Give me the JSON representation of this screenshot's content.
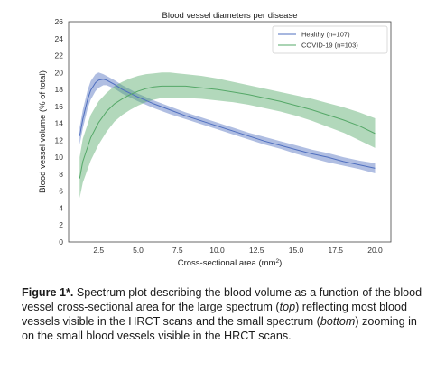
{
  "chart_data": {
    "type": "line",
    "title": "Blood vessel diameters per disease",
    "xlabel": "Cross-sectional area (mm²)",
    "ylabel": "Blood vessel volume (% of total)",
    "xlim": [
      0.6,
      21.0
    ],
    "ylim": [
      0,
      26
    ],
    "xticks": [
      "2.5",
      "5.0",
      "7.5",
      "10.0",
      "12.5",
      "15.0",
      "17.5",
      "20.0"
    ],
    "yticks": [
      "0",
      "2",
      "4",
      "6",
      "8",
      "10",
      "12",
      "14",
      "16",
      "18",
      "20",
      "22",
      "24",
      "26"
    ],
    "legend_position": "top-right",
    "grid": false,
    "series": [
      {
        "name": "Healthy (n=107)",
        "color": "#4f6fbf",
        "x": [
          1.3,
          1.5,
          1.8,
          2.0,
          2.3,
          2.5,
          2.8,
          3.0,
          3.5,
          4.0,
          5.0,
          6.0,
          7.0,
          8.0,
          9.0,
          10.0,
          11.0,
          12.0,
          13.0,
          14.0,
          15.0,
          16.0,
          17.0,
          18.0,
          19.0,
          20.0
        ],
        "mean": [
          12.5,
          14.5,
          16.8,
          17.9,
          18.8,
          19.1,
          19.2,
          19.1,
          18.6,
          18.0,
          17.1,
          16.3,
          15.6,
          14.9,
          14.3,
          13.7,
          13.1,
          12.5,
          11.9,
          11.4,
          10.9,
          10.4,
          10.0,
          9.5,
          9.1,
          8.7
        ],
        "upper": [
          13.5,
          15.6,
          17.9,
          19.0,
          19.8,
          20.0,
          19.8,
          19.6,
          19.1,
          18.5,
          17.5,
          16.7,
          16.0,
          15.3,
          14.7,
          14.1,
          13.5,
          12.9,
          12.4,
          11.9,
          11.4,
          10.9,
          10.5,
          10.0,
          9.6,
          9.3
        ],
        "lower": [
          11.5,
          13.4,
          15.7,
          16.8,
          17.8,
          18.2,
          18.5,
          18.5,
          18.1,
          17.5,
          16.6,
          15.8,
          15.1,
          14.5,
          13.9,
          13.3,
          12.7,
          12.1,
          11.5,
          11.0,
          10.4,
          9.9,
          9.4,
          9.0,
          8.6,
          8.1
        ]
      },
      {
        "name": "COVID-19 (n=103)",
        "color": "#55a868",
        "x": [
          1.3,
          1.5,
          2.0,
          2.5,
          3.0,
          3.5,
          4.0,
          4.5,
          5.0,
          5.5,
          6.0,
          6.5,
          7.0,
          7.5,
          8.0,
          9.0,
          10.0,
          11.0,
          12.0,
          13.0,
          14.0,
          15.0,
          16.0,
          17.0,
          18.0,
          19.0,
          20.0
        ],
        "mean": [
          7.5,
          9.5,
          12.3,
          14.1,
          15.4,
          16.3,
          16.9,
          17.4,
          17.8,
          18.1,
          18.3,
          18.4,
          18.4,
          18.4,
          18.4,
          18.2,
          18.0,
          17.7,
          17.4,
          17.0,
          16.6,
          16.1,
          15.6,
          15.0,
          14.4,
          13.7,
          12.8
        ],
        "upper": [
          10.0,
          12.2,
          15.0,
          16.6,
          17.6,
          18.4,
          18.9,
          19.3,
          19.6,
          19.8,
          19.9,
          20.0,
          20.0,
          19.9,
          19.8,
          19.6,
          19.3,
          18.9,
          18.5,
          18.1,
          17.7,
          17.3,
          16.9,
          16.4,
          15.9,
          15.3,
          14.6
        ],
        "lower": [
          5.2,
          7.0,
          9.6,
          11.5,
          13.0,
          14.2,
          15.0,
          15.6,
          16.1,
          16.5,
          16.8,
          17.0,
          17.0,
          17.0,
          17.0,
          16.9,
          16.7,
          16.5,
          16.2,
          15.8,
          15.4,
          14.9,
          14.3,
          13.6,
          12.9,
          12.0,
          11.1
        ]
      }
    ]
  },
  "caption": {
    "lead": "Figure 1*.",
    "text_1": "  Spectrum plot describing the blood volume as a function of the blood vessel cross-sectional area for the large spectrum (",
    "top": "top",
    "text_2": ") reflecting most blood vessels visible in the HRCT scans and the small spectrum (",
    "bottom": "bottom",
    "text_3": ") zooming in on the small blood vessels visible in the HRCT scans."
  }
}
